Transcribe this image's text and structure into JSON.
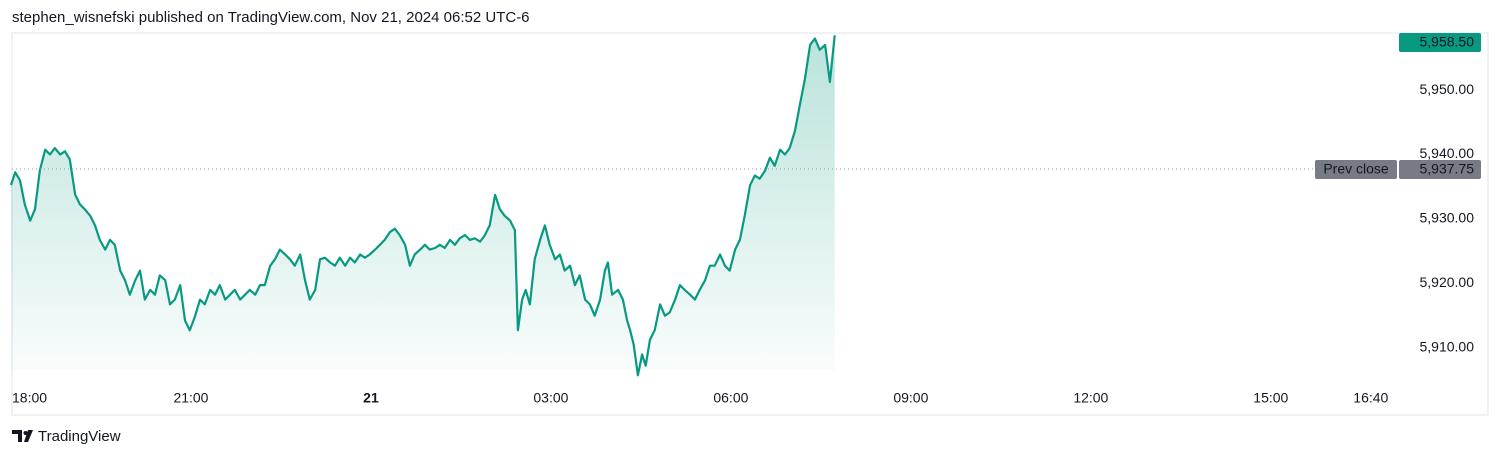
{
  "header": {
    "title": "stephen_wisnefski published on TradingView.com, Nov 21, 2024 06:52 UTC-6"
  },
  "footer": {
    "brand": "TradingView"
  },
  "chart_data": {
    "type": "area",
    "color": "#089981",
    "x": [
      0,
      0.07,
      0.15,
      0.23,
      0.32,
      0.4,
      0.48,
      0.57,
      0.65,
      0.73,
      0.82,
      0.9,
      0.98,
      1.07,
      1.15,
      1.23,
      1.32,
      1.4,
      1.48,
      1.57,
      1.65,
      1.73,
      1.82,
      1.9,
      1.98,
      2.07,
      2.15,
      2.23,
      2.32,
      2.4,
      2.48,
      2.57,
      2.65,
      2.73,
      2.82,
      2.9,
      2.98,
      3.07,
      3.15,
      3.23,
      3.32,
      3.4,
      3.48,
      3.57,
      3.65,
      3.73,
      3.82,
      3.9,
      3.98,
      4.07,
      4.15,
      4.23,
      4.32,
      4.4,
      4.48,
      4.57,
      4.65,
      4.73,
      4.82,
      4.9,
      4.98,
      5.07,
      5.15,
      5.23,
      5.32,
      5.4,
      5.48,
      5.57,
      5.65,
      5.73,
      5.82,
      5.9,
      5.98,
      6.07,
      6.15,
      6.23,
      6.32,
      6.4,
      6.48,
      6.57,
      6.65,
      6.73,
      6.82,
      6.9,
      6.98,
      7.07,
      7.15,
      7.23,
      7.32,
      7.4,
      7.48,
      7.57,
      7.65,
      7.73,
      7.82,
      7.9,
      7.98,
      8.07,
      8.15,
      8.23,
      8.32,
      8.4,
      8.45,
      8.52,
      8.58,
      8.65,
      8.73,
      8.82,
      8.9,
      8.98,
      9.07,
      9.15,
      9.23,
      9.32,
      9.4,
      9.48,
      9.57,
      9.65,
      9.73,
      9.82,
      9.9,
      9.95,
      10.02,
      10.12,
      10.2,
      10.27,
      10.32,
      10.38,
      10.45,
      10.52,
      10.58,
      10.65,
      10.73,
      10.82,
      10.9,
      10.98,
      11.07,
      11.15,
      11.23,
      11.32,
      11.4,
      11.48,
      11.57,
      11.65,
      11.73,
      11.82,
      11.9,
      11.98,
      12.07,
      12.15,
      12.23,
      12.32,
      12.4,
      12.48,
      12.57,
      12.65,
      12.73,
      12.82,
      12.9,
      12.98,
      13.07,
      13.15,
      13.23,
      13.32,
      13.4,
      13.48,
      13.57,
      13.65,
      13.73
    ],
    "values": [
      5935.25,
      5937.25,
      5936,
      5932.25,
      5929.75,
      5931.5,
      5937.5,
      5940.75,
      5940,
      5941,
      5940,
      5940.5,
      5939.25,
      5933.75,
      5932.25,
      5931.5,
      5930.5,
      5929,
      5926.75,
      5925.25,
      5926.75,
      5926,
      5922,
      5920.5,
      5918.25,
      5920.5,
      5922,
      5917.5,
      5919,
      5918.25,
      5921.25,
      5920.5,
      5916.75,
      5917.5,
      5919.75,
      5914.25,
      5912.75,
      5915,
      5917.5,
      5916.75,
      5919,
      5918.25,
      5919.75,
      5917.5,
      5918.25,
      5919,
      5917.5,
      5918.25,
      5919,
      5918.25,
      5919.75,
      5919.75,
      5922.75,
      5923.75,
      5925.25,
      5924.5,
      5923.75,
      5922.75,
      5924.5,
      5920.5,
      5917.5,
      5919,
      5923.75,
      5924,
      5923.25,
      5922.75,
      5924,
      5922.75,
      5924,
      5923.25,
      5924.5,
      5924,
      5924.5,
      5925.25,
      5926,
      5926.75,
      5928,
      5928.5,
      5927.5,
      5926,
      5922.75,
      5924.5,
      5925.25,
      5926,
      5925.25,
      5925.5,
      5926,
      5925.5,
      5926.75,
      5926,
      5927,
      5927.5,
      5926.75,
      5927,
      5926.5,
      5927.5,
      5929,
      5933.75,
      5931.5,
      5930.5,
      5929.75,
      5928.25,
      5912.75,
      5917.5,
      5919,
      5916.75,
      5923.75,
      5926.75,
      5929,
      5926,
      5923.75,
      5924.5,
      5922,
      5922.75,
      5919.75,
      5921.25,
      5917.5,
      5916.75,
      5915,
      5917.5,
      5922,
      5923.25,
      5918.25,
      5919,
      5917.5,
      5914.25,
      5912.75,
      5910.5,
      5905.75,
      5909,
      5907.25,
      5911.25,
      5912.75,
      5916.75,
      5915,
      5915.5,
      5917.5,
      5919.75,
      5919,
      5918.25,
      5917.5,
      5919,
      5920.5,
      5922.75,
      5922.75,
      5924.5,
      5922.75,
      5922,
      5925.25,
      5926.75,
      5930.5,
      5935.25,
      5936.75,
      5936.25,
      5937.5,
      5939.5,
      5938.25,
      5940.75,
      5940,
      5941,
      5943.75,
      5947.75,
      5951.5,
      5957,
      5958,
      5956.25,
      5957,
      5951.25,
      5958.5
    ],
    "xlim": [
      0,
      23.07
    ],
    "xticks": [
      {
        "value": 0,
        "label": "18:00"
      },
      {
        "value": 3,
        "label": "21:00"
      },
      {
        "value": 6,
        "label": "21"
      },
      {
        "value": 9,
        "label": "03:00"
      },
      {
        "value": 12,
        "label": "06:00"
      },
      {
        "value": 15,
        "label": "09:00"
      },
      {
        "value": 18,
        "label": "12:00"
      },
      {
        "value": 21,
        "label": "15:00"
      },
      {
        "value": 22.667,
        "label": "16:40"
      }
    ],
    "ylim": [
      5904.25,
      5958.85
    ],
    "yticks": [
      {
        "value": 5910,
        "label": "5,910.00"
      },
      {
        "value": 5920,
        "label": "5,920.00"
      },
      {
        "value": 5930,
        "label": "5,930.00"
      },
      {
        "value": 5940,
        "label": "5,940.00"
      },
      {
        "value": 5950,
        "label": "5,950.00"
      }
    ],
    "last_price": {
      "value": 5958.5,
      "label": "5,958.50"
    },
    "prev_close": {
      "name": "Prev close",
      "value": 5937.75,
      "label": "5,937.75"
    }
  }
}
